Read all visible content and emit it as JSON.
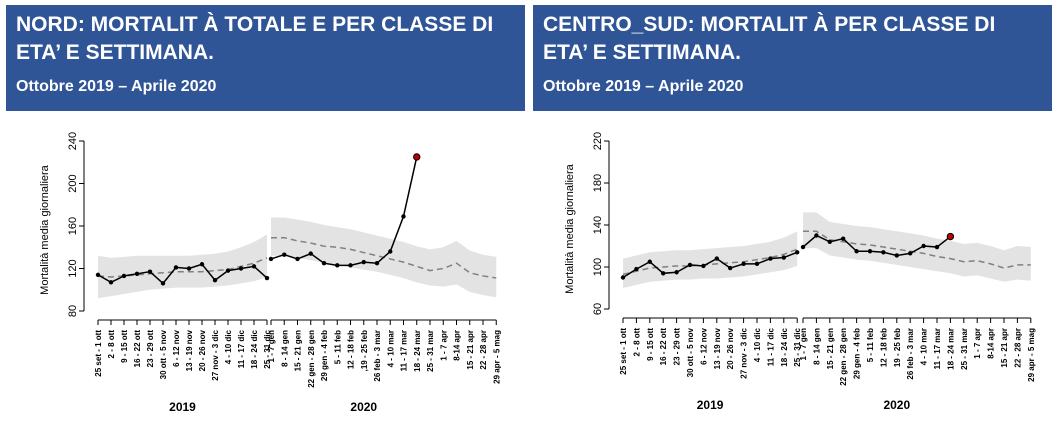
{
  "panels": [
    {
      "title": "NORD: MORTALIT À TOTALE E PER CLASSE DI ETA’ E SETTIMANA.",
      "subtitle": "Ottobre 2019 – Aprile 2020",
      "chart_data": {
        "type": "line",
        "ylabel": "Mortalità media giornaliera",
        "ylim": [
          80,
          240
        ],
        "yticks": [
          80,
          120,
          160,
          200,
          240
        ],
        "categories_2019": [
          "25 set - 1 ott",
          "2 - 8 ott",
          "9 - 15 ott",
          "16 - 22 ott",
          "23 - 29 ott",
          "30 ott - 5 nov",
          "6 - 12 nov",
          "13 - 19 nov",
          "20 - 26 nov",
          "27 nov - 3 dic",
          "4 - 10 dic",
          "11 - 17 dic",
          "18 - 24 dic",
          "25 - 31 dic"
        ],
        "categories_2020": [
          "1 - 7 gen",
          "8 - 14 gen",
          "15 - 21 gen",
          "22 gen - 28 gen",
          "29 gen - 4 feb",
          "5 - 11 feb",
          "12 - 18 feb",
          ",19 - 25 feb",
          "26 feb - 3 mar",
          "4 - 10 mar",
          "11 - 17 mar",
          "18 - 24 mar",
          "25 - 31 mar",
          "1 - 7 apr",
          "8-14 apr",
          "15 - 21 apr",
          "22 - 28 apr",
          "29 apr - 5 mag"
        ],
        "year_labels": [
          "2019",
          "2020"
        ],
        "observed_2019": [
          114,
          107,
          113,
          115,
          117,
          106,
          121,
          120,
          124,
          109,
          118,
          120,
          122,
          111
        ],
        "observed_2020": [
          129,
          133,
          129,
          134,
          125,
          123,
          123,
          126,
          125,
          136,
          169,
          225
        ],
        "expected_2019": [
          113,
          112,
          113,
          114,
          115,
          116,
          117,
          117,
          117,
          118,
          119,
          122,
          125,
          130
        ],
        "expected_2020": [
          149,
          149,
          146,
          144,
          141,
          140,
          138,
          135,
          132,
          129,
          126,
          122,
          118,
          120,
          125,
          116,
          113,
          111
        ],
        "band_low_2019": [
          92,
          94,
          96,
          98,
          100,
          101,
          102,
          102,
          102,
          103,
          104,
          106,
          108,
          112
        ],
        "band_high_2019": [
          132,
          130,
          131,
          132,
          132,
          132,
          132,
          132,
          133,
          134,
          136,
          140,
          145,
          152
        ],
        "band_low_2020": [
          132,
          132,
          130,
          128,
          125,
          124,
          121,
          119,
          117,
          114,
          111,
          107,
          104,
          103,
          105,
          98,
          95,
          93
        ],
        "band_high_2020": [
          168,
          168,
          166,
          164,
          161,
          159,
          157,
          154,
          151,
          148,
          145,
          141,
          138,
          140,
          146,
          137,
          133,
          131
        ],
        "colors": {
          "observed": "#000000",
          "expected": "#808080",
          "band": "#e3e3e3",
          "last_point": "#c00000"
        }
      }
    },
    {
      "title": "CENTRO_SUD: MORTALIT À PER CLASSE DI ETA’ E SETTIMANA.",
      "subtitle": "Ottobre 2019 – Aprile 2020",
      "chart_data": {
        "type": "line",
        "ylabel": "Mortalità media giornaliera",
        "ylim": [
          60,
          220
        ],
        "yticks": [
          60,
          100,
          140,
          180,
          220
        ],
        "categories_2019": [
          "25 set - 1 ott",
          "2 - 8 ott",
          "9 - 15 ott",
          "16 - 22 ott",
          "23 - 29 ott",
          "30 ott - 5 nov",
          "6 - 12 nov",
          "13 - 19 nov",
          "20 - 26 nov",
          "27 nov - 3 dic",
          "4 - 10 dic",
          "11 - 17 dic",
          "18 - 24 dic",
          "25 - 31 dic"
        ],
        "categories_2020": [
          "1 - 7 gen",
          "8 - 14 gen",
          "15 - 21 gen",
          "22 gen - 28 gen",
          "29 gen - 4 feb",
          "5 - 11 feb",
          "12 - 18 feb",
          "19 - 25 feb",
          "26 feb - 3 mar",
          "4 - 10 mar",
          "11 - 17 mar",
          "18 - 24 mar",
          "25 - 31 mar",
          "1 - 7 apr",
          "8-14 apr",
          "15 - 21 apr",
          "22 - 28 apr",
          "29 apr - 5 mag"
        ],
        "year_labels": [
          "2019",
          "2020"
        ],
        "observed_2019": [
          90,
          98,
          105,
          94,
          95,
          102,
          101,
          108,
          99,
          103,
          103,
          108,
          109,
          114
        ],
        "observed_2020": [
          119,
          130,
          124,
          127,
          115,
          115,
          114,
          111,
          113,
          120,
          119,
          129
        ],
        "expected_2019": [
          93,
          96,
          99,
          100,
          101,
          101,
          102,
          103,
          104,
          105,
          107,
          109,
          112,
          117
        ],
        "expected_2020": [
          134,
          134,
          126,
          124,
          122,
          121,
          119,
          117,
          115,
          113,
          110,
          108,
          105,
          106,
          103,
          99,
          102,
          102
        ],
        "band_low_2019": [
          80,
          83,
          86,
          87,
          88,
          88,
          89,
          89,
          90,
          91,
          93,
          95,
          97,
          101
        ],
        "band_high_2019": [
          108,
          111,
          114,
          115,
          116,
          116,
          117,
          118,
          119,
          120,
          122,
          124,
          128,
          134
        ],
        "band_low_2020": [
          118,
          118,
          111,
          109,
          107,
          106,
          104,
          102,
          100,
          98,
          96,
          94,
          91,
          92,
          89,
          86,
          88,
          87
        ],
        "band_high_2020": [
          152,
          152,
          143,
          141,
          139,
          138,
          136,
          134,
          132,
          130,
          127,
          125,
          122,
          123,
          120,
          116,
          120,
          119
        ],
        "colors": {
          "observed": "#000000",
          "expected": "#808080",
          "band": "#e3e3e3",
          "last_point": "#c00000"
        }
      }
    }
  ]
}
